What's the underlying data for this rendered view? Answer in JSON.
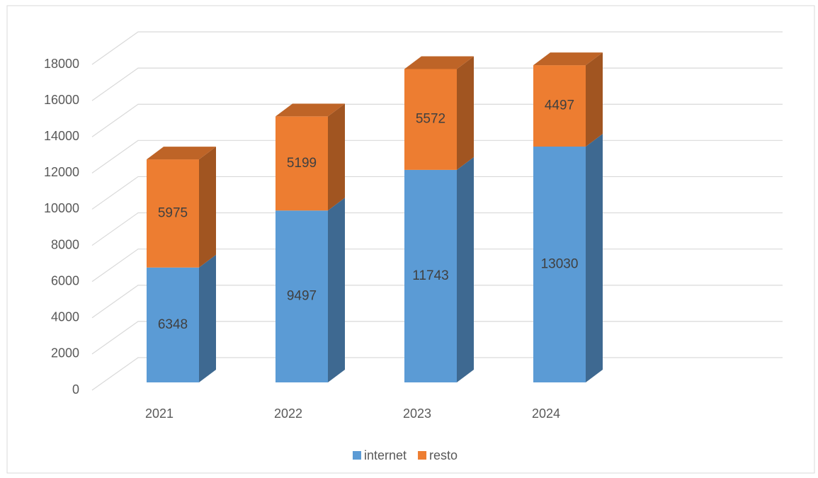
{
  "chart_data": {
    "type": "bar3d_stacked",
    "categories": [
      "2021",
      "2022",
      "2023",
      "2024"
    ],
    "series": [
      {
        "name": "internet",
        "color": "#5b9bd5",
        "values": [
          6348,
          9497,
          11743,
          13030
        ]
      },
      {
        "name": "resto",
        "color": "#ed7d31",
        "values": [
          5975,
          5199,
          5572,
          4497
        ]
      }
    ],
    "ylim": [
      0,
      18000
    ],
    "yticks": [
      0,
      2000,
      4000,
      6000,
      8000,
      10000,
      12000,
      14000,
      16000,
      18000
    ],
    "grid": true,
    "legend": "bottom"
  }
}
